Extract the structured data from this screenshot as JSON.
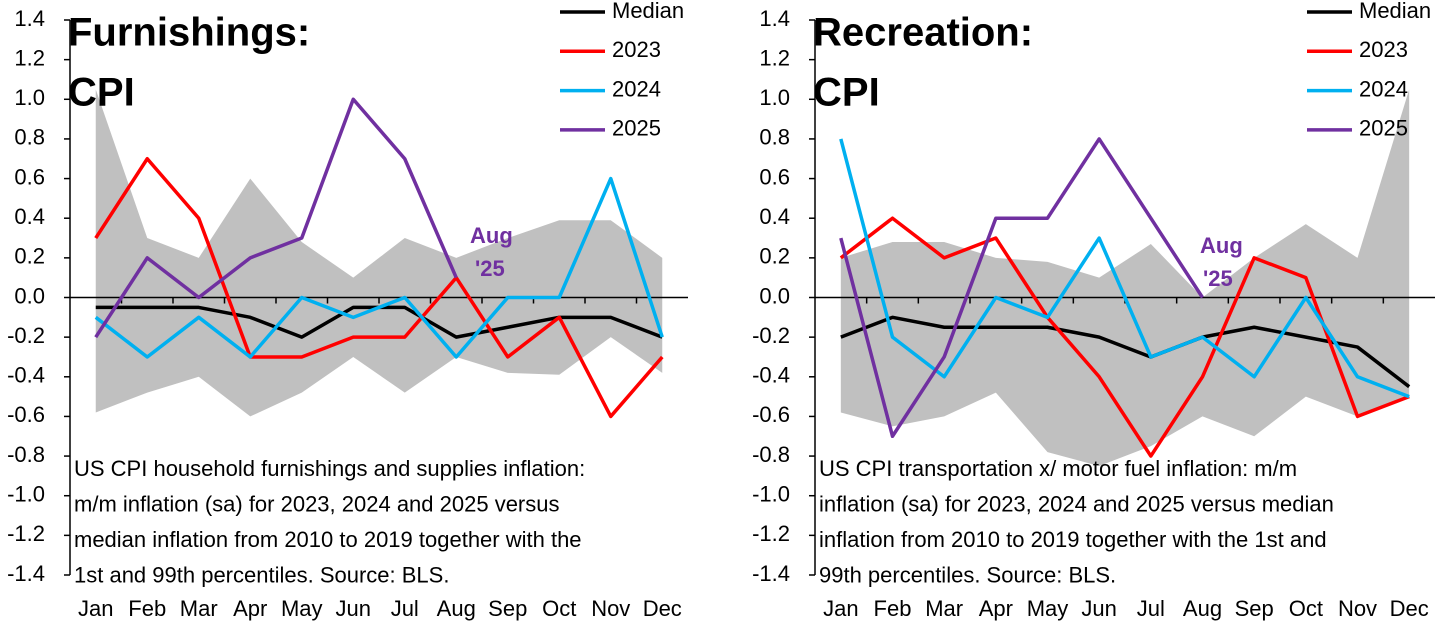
{
  "chart_data": [
    {
      "type": "line",
      "title": [
        "Furnishings:",
        "CPI"
      ],
      "categories": [
        "Jan",
        "Feb",
        "Mar",
        "Apr",
        "May",
        "Jun",
        "Jul",
        "Aug",
        "Sep",
        "Oct",
        "Nov",
        "Dec"
      ],
      "band": {
        "color": "#c0c0c0",
        "upper": [
          1.05,
          0.3,
          0.2,
          0.6,
          0.28,
          0.1,
          0.3,
          0.2,
          0.3,
          0.39,
          0.39,
          0.2
        ],
        "lower": [
          -0.58,
          -0.48,
          -0.4,
          -0.6,
          -0.48,
          -0.3,
          -0.48,
          -0.3,
          -0.38,
          -0.39,
          -0.2,
          -0.38
        ]
      },
      "series": [
        {
          "name": "Median",
          "color": "#000000",
          "values": [
            -0.05,
            -0.05,
            -0.05,
            -0.1,
            -0.2,
            -0.05,
            -0.05,
            -0.2,
            -0.15,
            -0.1,
            -0.1,
            -0.2
          ]
        },
        {
          "name": "2023",
          "color": "#ff0000",
          "values": [
            0.3,
            0.7,
            0.4,
            -0.3,
            -0.3,
            -0.2,
            -0.2,
            0.1,
            -0.3,
            -0.1,
            -0.6,
            -0.3
          ]
        },
        {
          "name": "2024",
          "color": "#00b0f0",
          "values": [
            -0.1,
            -0.3,
            -0.1,
            -0.3,
            0.0,
            -0.1,
            0.0,
            -0.3,
            0.0,
            0.0,
            0.6,
            -0.2
          ]
        },
        {
          "name": "2025",
          "color": "#7030a0",
          "values": [
            -0.2,
            0.2,
            0.0,
            0.2,
            0.3,
            1.0,
            0.7,
            0.1,
            null,
            null,
            null,
            null
          ]
        }
      ],
      "annotation": [
        "Aug",
        "'25"
      ],
      "note": [
        "US CPI household furnishings and supplies inflation:",
        "m/m inflation (sa) for 2023, 2024 and 2025 versus",
        "median inflation from 2010 to 2019 together with the",
        "1st and 99th percentiles. Source: BLS."
      ],
      "ylim": [
        -1.4,
        1.4
      ],
      "yticks": [
        {
          "value": -1.4,
          "label": "-1.4"
        },
        {
          "value": -1.2,
          "label": "-1.2"
        },
        {
          "value": -1.0,
          "label": "-1.0"
        },
        {
          "value": -0.8,
          "label": "-0.8"
        },
        {
          "value": -0.6,
          "label": "-0.6"
        },
        {
          "value": -0.4,
          "label": "-0.4"
        },
        {
          "value": -0.2,
          "label": "-0.2"
        },
        {
          "value": 0,
          "label": "0.0"
        },
        0.2,
        0.4,
        0.6,
        0.8,
        {
          "value": 1,
          "label": "1.0"
        },
        1.2,
        1.4
      ],
      "legend": "upper right",
      "grid": false
    },
    {
      "type": "line",
      "title": [
        "Recreation:",
        "CPI"
      ],
      "categories": [
        "Jan",
        "Feb",
        "Mar",
        "Apr",
        "May",
        "Jun",
        "Jul",
        "Aug",
        "Sep",
        "Oct",
        "Nov",
        "Dec"
      ],
      "band": {
        "color": "#c0c0c0",
        "upper": [
          0.2,
          0.28,
          0.28,
          0.2,
          0.18,
          0.1,
          0.27,
          0.0,
          0.2,
          0.37,
          0.2,
          1.05
        ],
        "lower": [
          -0.58,
          -0.65,
          -0.6,
          -0.48,
          -0.78,
          -0.85,
          -0.75,
          -0.6,
          -0.7,
          -0.5,
          -0.6,
          -0.5
        ]
      },
      "series": [
        {
          "name": "Median",
          "color": "#000000",
          "values": [
            -0.2,
            -0.1,
            -0.15,
            -0.15,
            -0.15,
            -0.2,
            -0.3,
            -0.2,
            -0.15,
            -0.2,
            -0.25,
            -0.45
          ]
        },
        {
          "name": "2023",
          "color": "#ff0000",
          "values": [
            0.2,
            0.4,
            0.2,
            0.3,
            -0.1,
            -0.4,
            -0.8,
            -0.4,
            0.2,
            0.1,
            -0.6,
            -0.5
          ]
        },
        {
          "name": "2024",
          "color": "#00b0f0",
          "values": [
            0.8,
            -0.2,
            -0.4,
            0.0,
            -0.1,
            0.3,
            -0.3,
            -0.2,
            -0.4,
            0.0,
            -0.4,
            -0.5
          ]
        },
        {
          "name": "2025",
          "color": "#7030a0",
          "values": [
            0.3,
            -0.7,
            -0.3,
            0.4,
            0.4,
            0.8,
            0.4,
            0.0,
            null,
            null,
            null,
            null
          ]
        }
      ],
      "annotation": [
        "Aug",
        "'25"
      ],
      "note": [
        "US CPI transportation x/ motor fuel inflation: m/m",
        "inflation (sa) for 2023, 2024 and 2025 versus median",
        "inflation from 2010 to 2019 together with the 1st and",
        "99th percentiles. Source: BLS."
      ],
      "ylim": [
        -1.4,
        1.4
      ],
      "yticks": [
        {
          "value": -1.4,
          "label": "-1.4"
        },
        {
          "value": -1.2,
          "label": "-1.2"
        },
        {
          "value": -1.0,
          "label": "-1.0"
        },
        {
          "value": -0.8,
          "label": "-0.8"
        },
        {
          "value": -0.6,
          "label": "-0.6"
        },
        {
          "value": -0.4,
          "label": "-0.4"
        },
        {
          "value": -0.2,
          "label": "-0.2"
        },
        {
          "value": 0,
          "label": "0.0"
        },
        0.2,
        0.4,
        0.6,
        0.8,
        {
          "value": 1,
          "label": "1.0"
        },
        1.2,
        1.4
      ],
      "legend": "upper right",
      "grid": false
    }
  ]
}
